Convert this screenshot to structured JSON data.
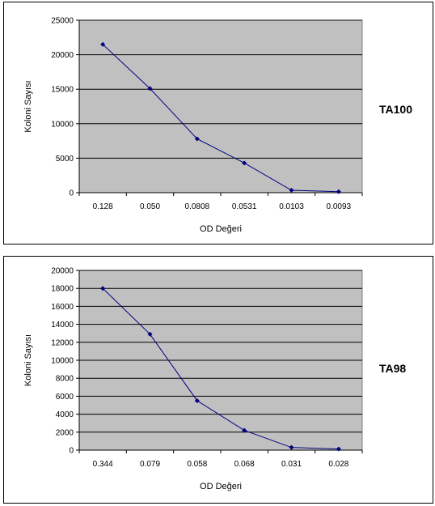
{
  "chart_data": [
    {
      "type": "line",
      "xlabel": "OD Değeri",
      "ylabel": "Koloni Sayısı",
      "side_label": "TA100",
      "categories": [
        "0.128",
        "0.050",
        "0.0808",
        "0.0531",
        "0.0103",
        "0.0093"
      ],
      "series": [
        {
          "values": [
            21500,
            15100,
            7800,
            4300,
            350,
            150
          ]
        }
      ],
      "ylim": [
        0,
        25000
      ],
      "yticks": [
        "0",
        "5000",
        "10000",
        "15000",
        "20000",
        "25000"
      ],
      "grid": true,
      "colors": {
        "plot_bg": "#c0c0c0",
        "line": "#000080",
        "grid": "#000000"
      }
    },
    {
      "type": "line",
      "xlabel": "OD Değeri",
      "ylabel": "Koloni Sayısı",
      "side_label": "TA98",
      "categories": [
        "0.344",
        "0.079",
        "0.058",
        "0.068",
        "0.031",
        "0.028"
      ],
      "series": [
        {
          "values": [
            18000,
            12900,
            5500,
            2200,
            300,
            120
          ]
        }
      ],
      "ylim": [
        0,
        20000
      ],
      "yticks": [
        "0",
        "2000",
        "4000",
        "6000",
        "8000",
        "10000",
        "12000",
        "14000",
        "16000",
        "18000",
        "20000"
      ],
      "grid": true,
      "colors": {
        "plot_bg": "#c0c0c0",
        "line": "#000080",
        "grid": "#000000"
      }
    }
  ]
}
